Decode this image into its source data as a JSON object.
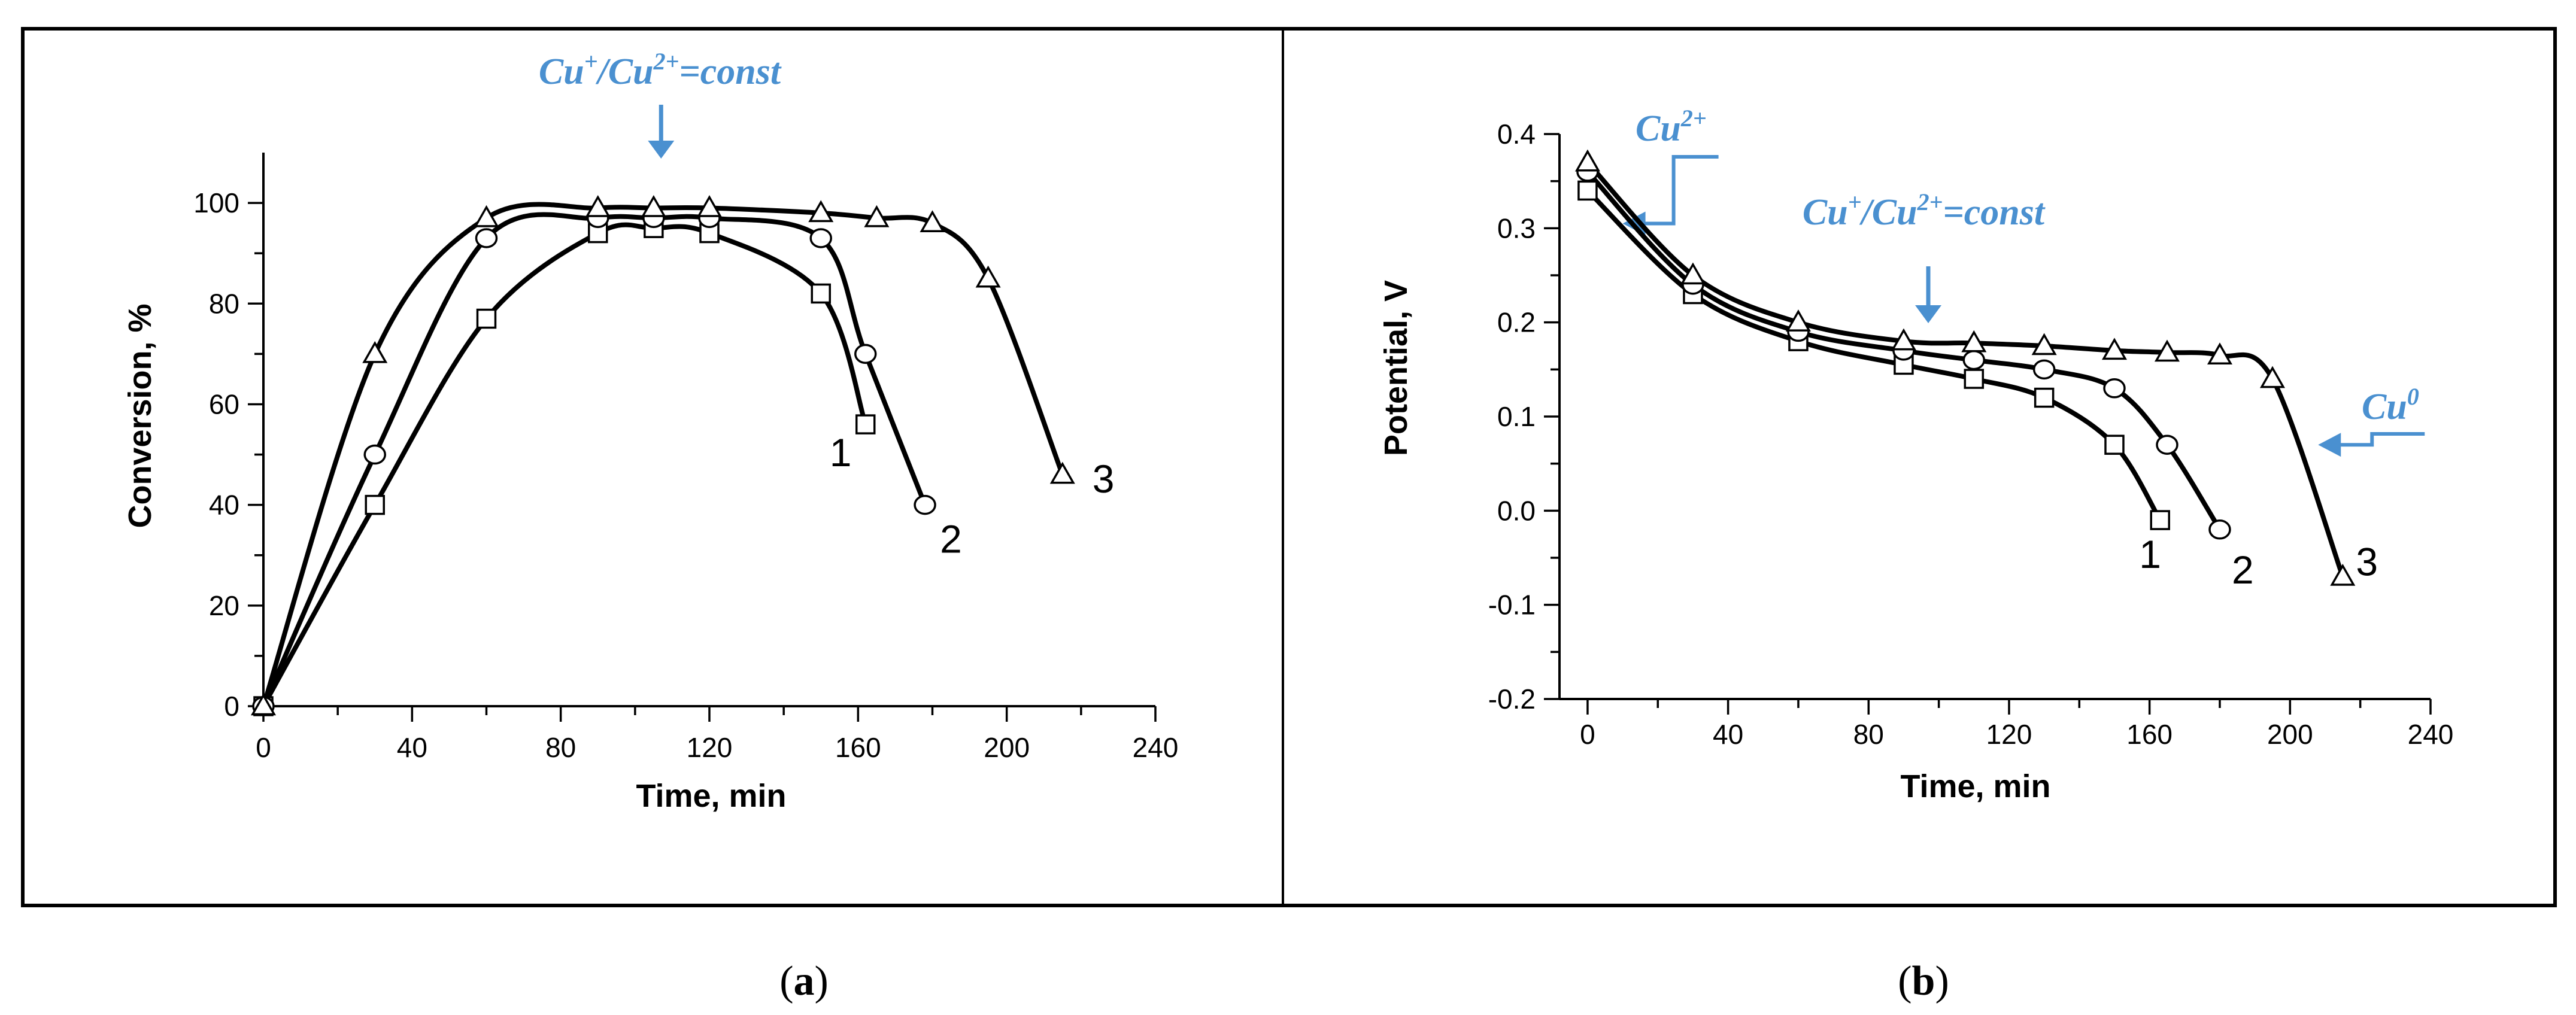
{
  "chart_data": [
    {
      "id": "a",
      "type": "scatter",
      "panel_label": "(a)",
      "panel_label_parts": {
        "open": "(",
        "letter": "a",
        "close": ")"
      },
      "xlabel": "Time, min",
      "ylabel": "Conversion, %",
      "xlim": [
        0,
        240
      ],
      "ylim": [
        0,
        110
      ],
      "xticks": [
        0,
        40,
        80,
        120,
        160,
        200,
        240
      ],
      "yticks": [
        0,
        20,
        40,
        60,
        80,
        100
      ],
      "x_minor_step": 20,
      "y_minor_step": 10,
      "tick_decimals": 0,
      "grid": false,
      "annotation": {
        "text": "Cu+/Cu2+=const",
        "base1": "Cu",
        "sup1": "+",
        "slash": "/",
        "base2": "Cu",
        "sup2": "2+",
        "tail": "=const",
        "arrow_x": 107
      },
      "series": [
        {
          "name": "1",
          "marker": "square",
          "x": [
            0,
            30,
            60,
            90,
            105,
            120,
            150,
            162
          ],
          "y": [
            0,
            40,
            77,
            94,
            95,
            94,
            82,
            56
          ]
        },
        {
          "name": "2",
          "marker": "circle",
          "x": [
            0,
            30,
            60,
            90,
            105,
            120,
            150,
            162,
            178
          ],
          "y": [
            0,
            50,
            93,
            97,
            97,
            97,
            93,
            70,
            40
          ]
        },
        {
          "name": "3",
          "marker": "triangle",
          "x": [
            0,
            30,
            60,
            90,
            105,
            120,
            150,
            165,
            180,
            195,
            215
          ],
          "y": [
            0,
            70,
            97,
            99,
            99,
            99,
            98,
            97,
            96,
            85,
            46
          ]
        }
      ]
    },
    {
      "id": "b",
      "type": "scatter",
      "panel_label": "(b)",
      "panel_label_parts": {
        "open": "(",
        "letter": "b",
        "close": ")"
      },
      "xlabel": "Time, min",
      "ylabel": "Potential, V",
      "xlim": [
        -8,
        240
      ],
      "ylim": [
        -0.2,
        0.4
      ],
      "xticks": [
        0,
        40,
        80,
        120,
        160,
        200,
        240
      ],
      "yticks": [
        -0.2,
        -0.1,
        0.0,
        0.1,
        0.2,
        0.3,
        0.4
      ],
      "x_minor_step": 20,
      "y_minor_step": 0.05,
      "tick_decimals": 1,
      "grid": false,
      "annotations": [
        {
          "id": "cu2",
          "text": "Cu2+",
          "base": "Cu",
          "sup": "2+",
          "arrow_to": [
            10,
            0.305
          ]
        },
        {
          "id": "cuconst",
          "text": "Cu+/Cu2+=const",
          "base1": "Cu",
          "sup1": "+",
          "slash": "/",
          "base2": "Cu",
          "sup2": "2+",
          "tail": "=const",
          "arrow_x": 97
        },
        {
          "id": "cu0",
          "text": "Cu0",
          "base": "Cu",
          "sup": "0",
          "arrow_to": [
            208,
            0.07
          ]
        }
      ],
      "series": [
        {
          "name": "1",
          "marker": "square",
          "x": [
            0,
            30,
            60,
            90,
            110,
            130,
            150,
            163
          ],
          "y": [
            0.34,
            0.23,
            0.18,
            0.155,
            0.14,
            0.12,
            0.07,
            -0.01
          ]
        },
        {
          "name": "2",
          "marker": "circle",
          "x": [
            0,
            30,
            60,
            90,
            110,
            130,
            150,
            165,
            180
          ],
          "y": [
            0.36,
            0.24,
            0.19,
            0.17,
            0.16,
            0.15,
            0.13,
            0.07,
            -0.02
          ]
        },
        {
          "name": "3",
          "marker": "triangle",
          "x": [
            0,
            30,
            60,
            90,
            110,
            130,
            150,
            165,
            180,
            195,
            215
          ],
          "y": [
            0.37,
            0.25,
            0.2,
            0.18,
            0.178,
            0.175,
            0.17,
            0.168,
            0.165,
            0.14,
            -0.07
          ]
        }
      ]
    }
  ],
  "style": {
    "annotation_color": "#4a90d0",
    "line_color": "#000000"
  }
}
